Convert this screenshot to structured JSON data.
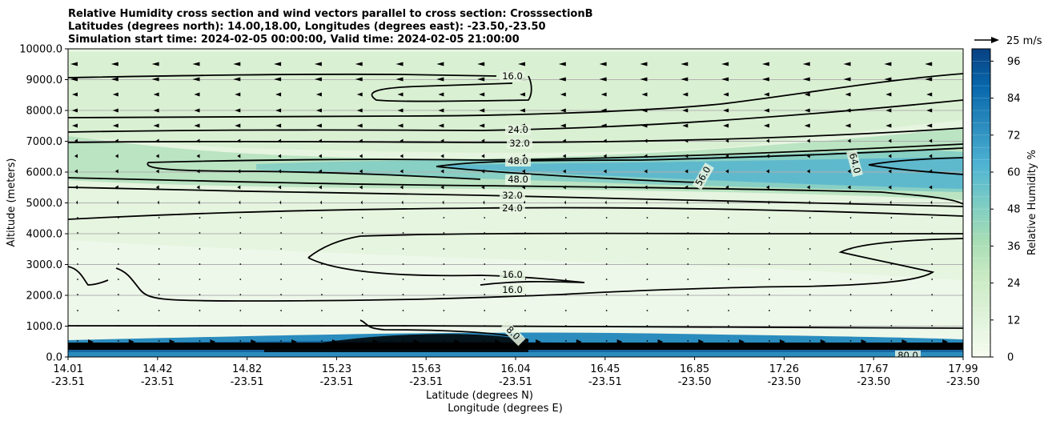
{
  "chart_data": {
    "type": "heatmap",
    "title_lines": [
      "Relative Humidity cross section and wind vectors parallel to cross section: CrosssectionB",
      "Latitudes (degrees north): 14.00,18.00, Longitudes (degrees east): -23.50,-23.50",
      "Simulation start time: 2024-02-05 00:00:00, Valid time: 2024-02-05 21:00:00"
    ],
    "xlabel_lat": "Latitude (degrees N)",
    "xlabel_lon": "Longitude (degrees E)",
    "ylabel": "Altitude (meters)",
    "x_ticks": [
      {
        "lat": "14.01",
        "lon": "-23.51"
      },
      {
        "lat": "14.42",
        "lon": "-23.51"
      },
      {
        "lat": "14.82",
        "lon": "-23.51"
      },
      {
        "lat": "15.23",
        "lon": "-23.51"
      },
      {
        "lat": "15.63",
        "lon": "-23.51"
      },
      {
        "lat": "16.04",
        "lon": "-23.51"
      },
      {
        "lat": "16.45",
        "lon": "-23.51"
      },
      {
        "lat": "16.85",
        "lon": "-23.50"
      },
      {
        "lat": "17.26",
        "lon": "-23.50"
      },
      {
        "lat": "17.67",
        "lon": "-23.50"
      },
      {
        "lat": "17.99",
        "lon": "-23.50"
      }
    ],
    "y_ticks": [
      "0.0",
      "1000.0",
      "2000.0",
      "3000.0",
      "4000.0",
      "5000.0",
      "6000.0",
      "7000.0",
      "8000.0",
      "9000.0",
      "10000.0"
    ],
    "ylim": [
      0,
      10000
    ],
    "grid": "horizontal",
    "colorbar": {
      "label": "Relative Humidity %",
      "ticks": [
        "0",
        "12",
        "24",
        "36",
        "48",
        "60",
        "72",
        "84",
        "96"
      ],
      "range": [
        0,
        100
      ],
      "colormap": "GnBu",
      "colors": [
        "#f7fcf0",
        "#e0f3db",
        "#ccebc5",
        "#a8ddb5",
        "#7bccc4",
        "#4eb3d3",
        "#2b8cbe",
        "#0868ac",
        "#084081"
      ]
    },
    "wind_reference": "25 m/s",
    "contour_labels": [
      "16.0",
      "24.0",
      "32.0",
      "48.0",
      "48.0",
      "32.0",
      "24.0",
      "16.0",
      "16.0",
      "56.0",
      "64.0",
      "8.0",
      "80.0"
    ]
  }
}
